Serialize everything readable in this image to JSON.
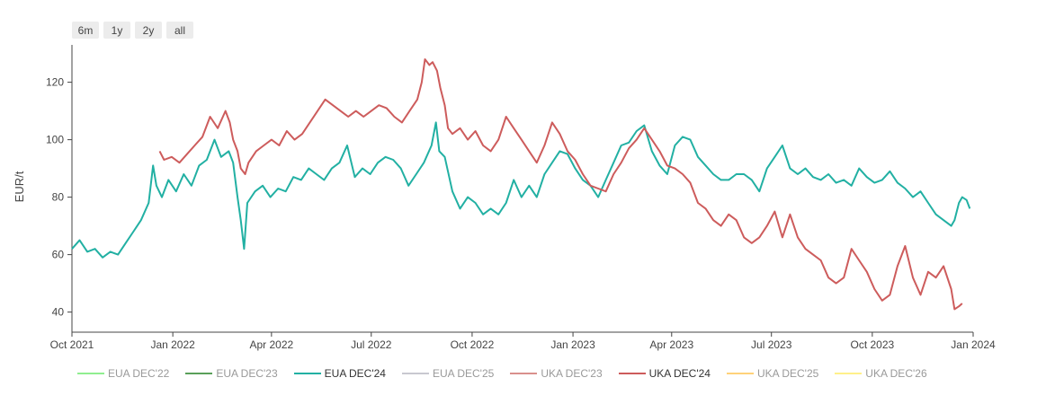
{
  "range_buttons": [
    "6m",
    "1y",
    "2y",
    "all"
  ],
  "legend": [
    {
      "label": "EUA DEC'22",
      "color": "#90ee90",
      "active": false
    },
    {
      "label": "EUA DEC'23",
      "color": "#5aa05a",
      "active": false
    },
    {
      "label": "EUA DEC'24",
      "color": "#22b0a3",
      "active": true
    },
    {
      "label": "EUA DEC'25",
      "color": "#c8c8d0",
      "active": false
    },
    {
      "label": "UKA DEC'23",
      "color": "#d9908c",
      "active": false
    },
    {
      "label": "UKA DEC'24",
      "color": "#cd5c5c",
      "active": true
    },
    {
      "label": "UKA DEC'25",
      "color": "#ffd27a",
      "active": false
    },
    {
      "label": "UKA DEC'26",
      "color": "#fff08a",
      "active": false
    }
  ],
  "chart_data": {
    "type": "line",
    "ylabel": "EUR/t",
    "xlabel": "",
    "xlim": [
      "2021-10-01",
      "2024-01-01"
    ],
    "ylim": [
      33,
      133
    ],
    "x_ticks": [
      "Oct 2021",
      "Jan 2022",
      "Apr 2022",
      "Jul 2022",
      "Oct 2022",
      "Jan 2023",
      "Apr 2023",
      "Jul 2023",
      "Oct 2023",
      "Jan 2024"
    ],
    "y_ticks": [
      40,
      60,
      80,
      100,
      120
    ],
    "grid": false,
    "legend_position": "bottom",
    "series": [
      {
        "name": "EUA DEC'24",
        "color": "#22b0a3",
        "points": [
          [
            "2021-10-01",
            62
          ],
          [
            "2021-10-08",
            65
          ],
          [
            "2021-10-15",
            61
          ],
          [
            "2021-10-22",
            62
          ],
          [
            "2021-10-29",
            59
          ],
          [
            "2021-11-05",
            61
          ],
          [
            "2021-11-12",
            60
          ],
          [
            "2021-11-19",
            64
          ],
          [
            "2021-11-26",
            68
          ],
          [
            "2021-12-03",
            72
          ],
          [
            "2021-12-10",
            78
          ],
          [
            "2021-12-14",
            91
          ],
          [
            "2021-12-17",
            84
          ],
          [
            "2021-12-22",
            80
          ],
          [
            "2021-12-28",
            86
          ],
          [
            "2022-01-04",
            82
          ],
          [
            "2022-01-11",
            88
          ],
          [
            "2022-01-18",
            84
          ],
          [
            "2022-01-25",
            91
          ],
          [
            "2022-02-01",
            93
          ],
          [
            "2022-02-08",
            100
          ],
          [
            "2022-02-14",
            94
          ],
          [
            "2022-02-21",
            96
          ],
          [
            "2022-02-25",
            92
          ],
          [
            "2022-03-01",
            80
          ],
          [
            "2022-03-04",
            72
          ],
          [
            "2022-03-07",
            62
          ],
          [
            "2022-03-10",
            78
          ],
          [
            "2022-03-17",
            82
          ],
          [
            "2022-03-24",
            84
          ],
          [
            "2022-03-31",
            80
          ],
          [
            "2022-04-07",
            83
          ],
          [
            "2022-04-14",
            82
          ],
          [
            "2022-04-21",
            87
          ],
          [
            "2022-04-28",
            86
          ],
          [
            "2022-05-05",
            90
          ],
          [
            "2022-05-12",
            88
          ],
          [
            "2022-05-19",
            86
          ],
          [
            "2022-05-26",
            90
          ],
          [
            "2022-06-02",
            92
          ],
          [
            "2022-06-09",
            98
          ],
          [
            "2022-06-16",
            87
          ],
          [
            "2022-06-23",
            90
          ],
          [
            "2022-06-30",
            88
          ],
          [
            "2022-07-07",
            92
          ],
          [
            "2022-07-14",
            94
          ],
          [
            "2022-07-21",
            93
          ],
          [
            "2022-07-28",
            90
          ],
          [
            "2022-08-04",
            84
          ],
          [
            "2022-08-11",
            88
          ],
          [
            "2022-08-18",
            92
          ],
          [
            "2022-08-25",
            98
          ],
          [
            "2022-08-29",
            106
          ],
          [
            "2022-09-01",
            96
          ],
          [
            "2022-09-06",
            94
          ],
          [
            "2022-09-13",
            82
          ],
          [
            "2022-09-20",
            76
          ],
          [
            "2022-09-27",
            80
          ],
          [
            "2022-10-04",
            78
          ],
          [
            "2022-10-11",
            74
          ],
          [
            "2022-10-18",
            76
          ],
          [
            "2022-10-25",
            74
          ],
          [
            "2022-11-01",
            78
          ],
          [
            "2022-11-08",
            86
          ],
          [
            "2022-11-15",
            80
          ],
          [
            "2022-11-22",
            84
          ],
          [
            "2022-11-29",
            80
          ],
          [
            "2022-12-06",
            88
          ],
          [
            "2022-12-13",
            92
          ],
          [
            "2022-12-20",
            96
          ],
          [
            "2022-12-27",
            95
          ],
          [
            "2023-01-03",
            90
          ],
          [
            "2023-01-10",
            86
          ],
          [
            "2023-01-17",
            84
          ],
          [
            "2023-01-24",
            80
          ],
          [
            "2023-01-31",
            86
          ],
          [
            "2023-02-07",
            92
          ],
          [
            "2023-02-14",
            98
          ],
          [
            "2023-02-21",
            99
          ],
          [
            "2023-02-28",
            103
          ],
          [
            "2023-03-07",
            105
          ],
          [
            "2023-03-14",
            96
          ],
          [
            "2023-03-21",
            91
          ],
          [
            "2023-03-28",
            88
          ],
          [
            "2023-04-04",
            98
          ],
          [
            "2023-04-11",
            101
          ],
          [
            "2023-04-18",
            100
          ],
          [
            "2023-04-25",
            94
          ],
          [
            "2023-05-02",
            91
          ],
          [
            "2023-05-09",
            88
          ],
          [
            "2023-05-16",
            86
          ],
          [
            "2023-05-23",
            86
          ],
          [
            "2023-05-30",
            88
          ],
          [
            "2023-06-06",
            88
          ],
          [
            "2023-06-13",
            86
          ],
          [
            "2023-06-20",
            82
          ],
          [
            "2023-06-27",
            90
          ],
          [
            "2023-07-04",
            94
          ],
          [
            "2023-07-11",
            98
          ],
          [
            "2023-07-18",
            90
          ],
          [
            "2023-07-25",
            88
          ],
          [
            "2023-08-01",
            90
          ],
          [
            "2023-08-08",
            87
          ],
          [
            "2023-08-15",
            86
          ],
          [
            "2023-08-22",
            88
          ],
          [
            "2023-08-29",
            85
          ],
          [
            "2023-09-05",
            86
          ],
          [
            "2023-09-12",
            84
          ],
          [
            "2023-09-19",
            90
          ],
          [
            "2023-09-26",
            87
          ],
          [
            "2023-10-03",
            85
          ],
          [
            "2023-10-10",
            86
          ],
          [
            "2023-10-17",
            89
          ],
          [
            "2023-10-24",
            85
          ],
          [
            "2023-10-31",
            83
          ],
          [
            "2023-11-07",
            80
          ],
          [
            "2023-11-14",
            82
          ],
          [
            "2023-11-21",
            78
          ],
          [
            "2023-11-28",
            74
          ],
          [
            "2023-12-05",
            72
          ],
          [
            "2023-12-12",
            70
          ],
          [
            "2023-12-15",
            72
          ],
          [
            "2023-12-19",
            78
          ],
          [
            "2023-12-22",
            80
          ],
          [
            "2023-12-26",
            79
          ],
          [
            "2023-12-29",
            76
          ]
        ]
      },
      {
        "name": "UKA DEC'24",
        "color": "#cd5c5c",
        "points": [
          [
            "2021-12-20",
            96
          ],
          [
            "2021-12-24",
            93
          ],
          [
            "2021-12-31",
            94
          ],
          [
            "2022-01-07",
            92
          ],
          [
            "2022-01-14",
            95
          ],
          [
            "2022-01-21",
            98
          ],
          [
            "2022-01-28",
            101
          ],
          [
            "2022-02-04",
            108
          ],
          [
            "2022-02-11",
            104
          ],
          [
            "2022-02-18",
            110
          ],
          [
            "2022-02-22",
            106
          ],
          [
            "2022-02-25",
            100
          ],
          [
            "2022-03-01",
            96
          ],
          [
            "2022-03-04",
            90
          ],
          [
            "2022-03-08",
            88
          ],
          [
            "2022-03-11",
            92
          ],
          [
            "2022-03-18",
            96
          ],
          [
            "2022-03-25",
            98
          ],
          [
            "2022-04-01",
            100
          ],
          [
            "2022-04-08",
            98
          ],
          [
            "2022-04-15",
            103
          ],
          [
            "2022-04-22",
            100
          ],
          [
            "2022-04-29",
            102
          ],
          [
            "2022-05-06",
            106
          ],
          [
            "2022-05-13",
            110
          ],
          [
            "2022-05-20",
            114
          ],
          [
            "2022-05-27",
            112
          ],
          [
            "2022-06-03",
            110
          ],
          [
            "2022-06-10",
            108
          ],
          [
            "2022-06-17",
            110
          ],
          [
            "2022-06-24",
            108
          ],
          [
            "2022-07-01",
            110
          ],
          [
            "2022-07-08",
            112
          ],
          [
            "2022-07-15",
            111
          ],
          [
            "2022-07-22",
            108
          ],
          [
            "2022-07-29",
            106
          ],
          [
            "2022-08-05",
            110
          ],
          [
            "2022-08-12",
            114
          ],
          [
            "2022-08-16",
            120
          ],
          [
            "2022-08-19",
            128
          ],
          [
            "2022-08-23",
            126
          ],
          [
            "2022-08-26",
            127
          ],
          [
            "2022-08-30",
            124
          ],
          [
            "2022-09-02",
            118
          ],
          [
            "2022-09-06",
            112
          ],
          [
            "2022-09-09",
            104
          ],
          [
            "2022-09-13",
            102
          ],
          [
            "2022-09-20",
            104
          ],
          [
            "2022-09-27",
            100
          ],
          [
            "2022-10-04",
            103
          ],
          [
            "2022-10-11",
            98
          ],
          [
            "2022-10-18",
            96
          ],
          [
            "2022-10-25",
            100
          ],
          [
            "2022-11-01",
            108
          ],
          [
            "2022-11-08",
            104
          ],
          [
            "2022-11-15",
            100
          ],
          [
            "2022-11-22",
            96
          ],
          [
            "2022-11-29",
            92
          ],
          [
            "2022-12-06",
            98
          ],
          [
            "2022-12-13",
            106
          ],
          [
            "2022-12-20",
            102
          ],
          [
            "2022-12-27",
            96
          ],
          [
            "2023-01-03",
            93
          ],
          [
            "2023-01-10",
            88
          ],
          [
            "2023-01-17",
            84
          ],
          [
            "2023-01-24",
            83
          ],
          [
            "2023-01-31",
            82
          ],
          [
            "2023-02-07",
            88
          ],
          [
            "2023-02-14",
            92
          ],
          [
            "2023-02-21",
            97
          ],
          [
            "2023-02-28",
            100
          ],
          [
            "2023-03-07",
            104
          ],
          [
            "2023-03-14",
            100
          ],
          [
            "2023-03-21",
            96
          ],
          [
            "2023-03-28",
            91
          ],
          [
            "2023-04-04",
            90
          ],
          [
            "2023-04-11",
            88
          ],
          [
            "2023-04-18",
            85
          ],
          [
            "2023-04-25",
            78
          ],
          [
            "2023-05-02",
            76
          ],
          [
            "2023-05-09",
            72
          ],
          [
            "2023-05-16",
            70
          ],
          [
            "2023-05-23",
            74
          ],
          [
            "2023-05-30",
            72
          ],
          [
            "2023-06-06",
            66
          ],
          [
            "2023-06-13",
            64
          ],
          [
            "2023-06-20",
            66
          ],
          [
            "2023-06-27",
            70
          ],
          [
            "2023-07-04",
            75
          ],
          [
            "2023-07-11",
            66
          ],
          [
            "2023-07-18",
            74
          ],
          [
            "2023-07-25",
            66
          ],
          [
            "2023-08-01",
            62
          ],
          [
            "2023-08-08",
            60
          ],
          [
            "2023-08-15",
            58
          ],
          [
            "2023-08-22",
            52
          ],
          [
            "2023-08-29",
            50
          ],
          [
            "2023-09-05",
            52
          ],
          [
            "2023-09-12",
            62
          ],
          [
            "2023-09-19",
            58
          ],
          [
            "2023-09-26",
            54
          ],
          [
            "2023-10-03",
            48
          ],
          [
            "2023-10-10",
            44
          ],
          [
            "2023-10-17",
            46
          ],
          [
            "2023-10-24",
            56
          ],
          [
            "2023-10-31",
            63
          ],
          [
            "2023-11-07",
            52
          ],
          [
            "2023-11-14",
            46
          ],
          [
            "2023-11-21",
            54
          ],
          [
            "2023-11-28",
            52
          ],
          [
            "2023-12-05",
            56
          ],
          [
            "2023-12-12",
            48
          ],
          [
            "2023-12-15",
            41
          ],
          [
            "2023-12-19",
            42
          ],
          [
            "2023-12-22",
            43
          ]
        ]
      }
    ]
  }
}
